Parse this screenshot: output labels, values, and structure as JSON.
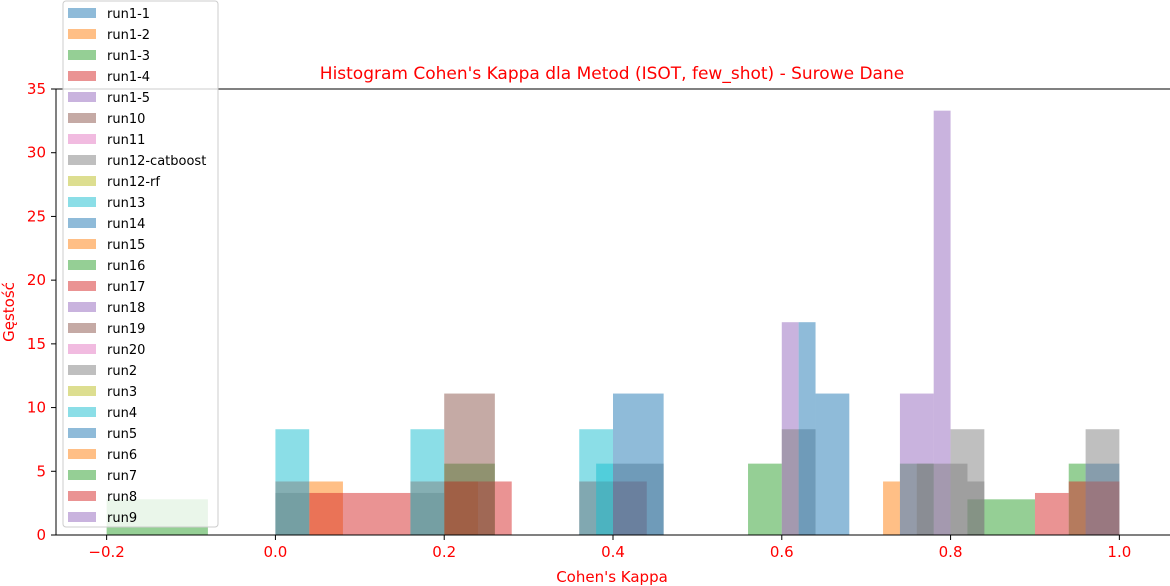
{
  "chart_data": {
    "type": "bar",
    "title": "Histogram Cohen's Kappa dla Metod (ISOT, few_shot) - Surowe Dane",
    "xlabel": "Cohen's Kappa",
    "ylabel": "Gęstość",
    "xlim": [
      -0.26,
      1.06
    ],
    "ylim": [
      0,
      35
    ],
    "x_ticks": [
      {
        "value": -0.2,
        "label": "−0.2"
      },
      {
        "value": 0.0,
        "label": "0.0"
      },
      {
        "value": 0.2,
        "label": "0.2"
      },
      {
        "value": 0.4,
        "label": "0.4"
      },
      {
        "value": 0.6,
        "label": "0.6"
      },
      {
        "value": 0.8,
        "label": "0.8"
      },
      {
        "value": 1.0,
        "label": "1.0"
      }
    ],
    "y_ticks": [
      {
        "value": 0,
        "label": "0"
      },
      {
        "value": 5,
        "label": "5"
      },
      {
        "value": 10,
        "label": "10"
      },
      {
        "value": 15,
        "label": "15"
      },
      {
        "value": 20,
        "label": "20"
      },
      {
        "value": 25,
        "label": "25"
      },
      {
        "value": 30,
        "label": "30"
      },
      {
        "value": 35,
        "label": "35"
      }
    ],
    "grid": false,
    "legend_position": "top-left",
    "text_color": "#ff0000",
    "series": [
      {
        "name": "run1-1",
        "color": "#1f77b4",
        "bins": [
          [
            0.64,
            0.68,
            11.1
          ],
          [
            0.96,
            1.0,
            5.6
          ]
        ]
      },
      {
        "name": "run1-2",
        "color": "#ff7f0e",
        "bins": [
          [
            0.04,
            0.08,
            4.2
          ],
          [
            0.2,
            0.24,
            4.2
          ]
        ]
      },
      {
        "name": "run1-3",
        "color": "#2ca02c",
        "bins": [
          [
            -0.2,
            -0.08,
            2.8
          ],
          [
            0.2,
            0.26,
            5.6
          ],
          [
            0.56,
            0.6,
            5.6
          ],
          [
            0.74,
            0.78,
            5.6
          ],
          [
            0.82,
            0.9,
            2.8
          ],
          [
            0.94,
            0.96,
            5.6
          ]
        ]
      },
      {
        "name": "run1-4",
        "color": "#d62728",
        "bins": [
          [
            0.04,
            0.16,
            3.3
          ],
          [
            0.2,
            0.28,
            4.2
          ],
          [
            0.36,
            0.44,
            4.2
          ],
          [
            0.9,
            0.94,
            3.3
          ],
          [
            0.94,
            1.0,
            4.2
          ]
        ]
      },
      {
        "name": "run1-5",
        "color": "#9467bd",
        "bins": [
          [
            0.6,
            0.62,
            16.7
          ],
          [
            0.74,
            0.78,
            11.1
          ],
          [
            0.78,
            0.8,
            33.3
          ]
        ]
      },
      {
        "name": "run10",
        "color": "#8c564b",
        "bins": [
          [
            0.2,
            0.26,
            11.1
          ]
        ]
      },
      {
        "name": "run11",
        "color": "#e377c2",
        "bins": []
      },
      {
        "name": "run12-catboost",
        "color": "#7f7f7f",
        "bins": [
          [
            0.0,
            0.04,
            3.3
          ],
          [
            0.16,
            0.2,
            3.3
          ],
          [
            0.4,
            0.46,
            5.6
          ],
          [
            0.6,
            0.64,
            8.3
          ],
          [
            0.8,
            0.84,
            8.3
          ],
          [
            0.96,
            1.0,
            8.3
          ]
        ]
      },
      {
        "name": "run12-rf",
        "color": "#bcbd22",
        "bins": []
      },
      {
        "name": "run13",
        "color": "#17becf",
        "bins": [
          [
            0.0,
            0.04,
            8.3
          ],
          [
            0.16,
            0.2,
            8.3
          ],
          [
            0.36,
            0.4,
            8.3
          ]
        ]
      },
      {
        "name": "run14",
        "color": "#1f77b4",
        "bins": [
          [
            0.4,
            0.46,
            11.1
          ],
          [
            0.62,
            0.64,
            16.7
          ]
        ]
      },
      {
        "name": "run15",
        "color": "#ff7f0e",
        "bins": [
          [
            0.72,
            0.74,
            4.2
          ]
        ]
      },
      {
        "name": "run16",
        "color": "#2ca02c",
        "bins": []
      },
      {
        "name": "run17",
        "color": "#d62728",
        "bins": []
      },
      {
        "name": "run18",
        "color": "#9467bd",
        "bins": []
      },
      {
        "name": "run19",
        "color": "#8c564b",
        "bins": []
      },
      {
        "name": "run20",
        "color": "#e377c2",
        "bins": []
      },
      {
        "name": "run2",
        "color": "#7f7f7f",
        "bins": [
          [
            0.0,
            0.04,
            4.2
          ],
          [
            0.16,
            0.2,
            4.2
          ],
          [
            0.76,
            0.82,
            5.6
          ],
          [
            0.82,
            0.84,
            4.2
          ]
        ]
      },
      {
        "name": "run3",
        "color": "#bcbd22",
        "bins": []
      },
      {
        "name": "run4",
        "color": "#17becf",
        "bins": [
          [
            0.38,
            0.4,
            5.6
          ]
        ]
      },
      {
        "name": "run5",
        "color": "#1f77b4",
        "bins": []
      },
      {
        "name": "run6",
        "color": "#ff7f0e",
        "bins": []
      },
      {
        "name": "run7",
        "color": "#2ca02c",
        "bins": []
      },
      {
        "name": "run8",
        "color": "#d62728",
        "bins": []
      },
      {
        "name": "run9",
        "color": "#9467bd",
        "bins": []
      }
    ]
  }
}
